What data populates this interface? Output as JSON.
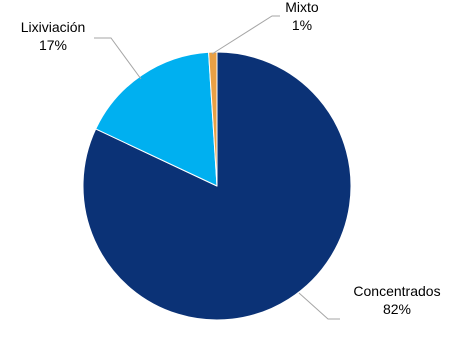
{
  "chart_data": {
    "type": "pie",
    "series": [
      {
        "values": [
          {
            "label": "Concentrados",
            "value": 82,
            "display": "82%"
          },
          {
            "label": "Lixiviación",
            "value": 17,
            "display": "17%"
          },
          {
            "label": "Mixto",
            "value": 1,
            "display": "1%"
          }
        ]
      }
    ],
    "colors": {
      "Concentrados": "#0B3276",
      "Lixiviación": "#00B0F0",
      "Mixto": "#E9A045"
    },
    "title": "",
    "legend": "none",
    "labels_position": "outside-with-leader-lines"
  }
}
